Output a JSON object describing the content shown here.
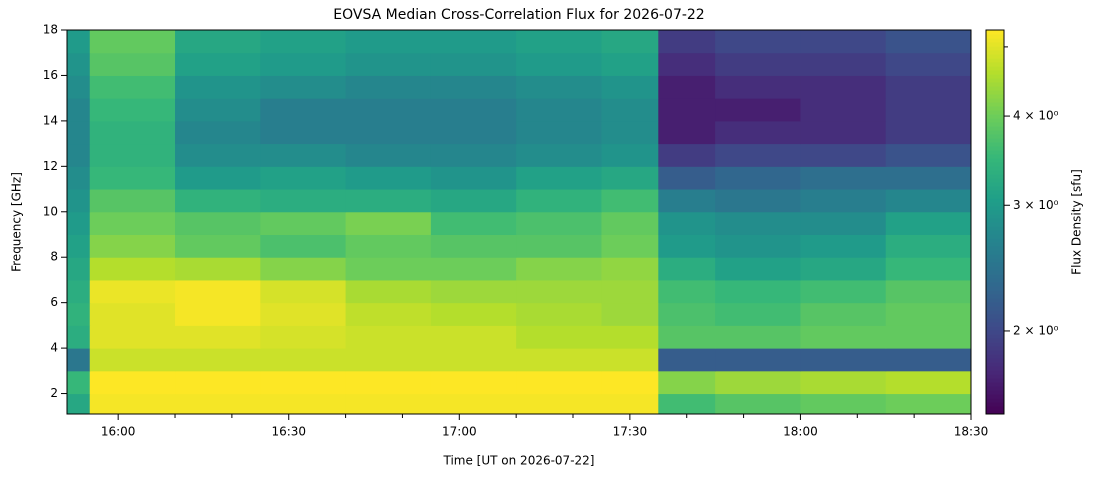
{
  "chart_data": {
    "type": "heatmap",
    "title": "EOVSA Median Cross-Correlation Flux for 2026-07-22",
    "x_label": "Time [UT on 2026-07-22]",
    "y_label": "Frequency [GHz]",
    "colorbar_label": "Flux Density [sfu]",
    "colormap": "viridis",
    "x_bins": [
      951,
      955,
      970,
      985,
      1000,
      1015,
      1030,
      1045,
      1055,
      1065,
      1080,
      1095,
      1110
    ],
    "y_bins": [
      1.1,
      2,
      3,
      4,
      5,
      6,
      7,
      8,
      9,
      10,
      11,
      12,
      13,
      14,
      15,
      16,
      17,
      18
    ],
    "z": [
      [
        3.2,
        5.2,
        5.2,
        5.2,
        5.2,
        5.2,
        5.2,
        5.2,
        3.6,
        3.8,
        3.9,
        4.0
      ],
      [
        3.5,
        5.3,
        5.3,
        5.3,
        5.3,
        5.3,
        5.3,
        5.3,
        4.2,
        4.4,
        4.5,
        4.6
      ],
      [
        2.5,
        4.8,
        4.8,
        4.8,
        4.8,
        4.8,
        4.8,
        4.8,
        2.2,
        2.2,
        2.2,
        2.2
      ],
      [
        3.3,
        5.0,
        5.0,
        4.9,
        4.8,
        4.8,
        4.6,
        4.6,
        3.8,
        3.8,
        3.9,
        3.9
      ],
      [
        3.4,
        5.0,
        5.2,
        5.0,
        4.7,
        4.6,
        4.5,
        4.4,
        3.7,
        3.6,
        3.8,
        3.9
      ],
      [
        3.3,
        5.1,
        5.2,
        4.9,
        4.5,
        4.4,
        4.4,
        4.4,
        3.6,
        3.5,
        3.6,
        3.8
      ],
      [
        3.2,
        4.6,
        4.5,
        4.2,
        4.0,
        4.0,
        4.2,
        4.3,
        3.3,
        3.1,
        3.2,
        3.5
      ],
      [
        3.1,
        4.2,
        3.9,
        3.7,
        3.9,
        3.8,
        3.8,
        4.0,
        3.0,
        2.9,
        3.0,
        3.3
      ],
      [
        3.0,
        4.0,
        3.8,
        3.9,
        4.1,
        3.6,
        3.7,
        3.9,
        2.9,
        2.8,
        2.8,
        3.1
      ],
      [
        2.9,
        3.8,
        3.4,
        3.3,
        3.3,
        3.2,
        3.4,
        3.6,
        2.6,
        2.5,
        2.6,
        2.7
      ],
      [
        2.8,
        3.5,
        3.0,
        3.1,
        3.0,
        2.9,
        3.1,
        3.2,
        2.2,
        2.3,
        2.4,
        2.4
      ],
      [
        2.7,
        3.4,
        2.8,
        2.8,
        2.7,
        2.7,
        2.8,
        2.9,
        1.9,
        2.0,
        2.0,
        2.1
      ],
      [
        2.7,
        3.4,
        2.7,
        2.6,
        2.6,
        2.6,
        2.7,
        2.8,
        1.7,
        1.8,
        1.8,
        1.9
      ],
      [
        2.7,
        3.5,
        2.8,
        2.6,
        2.6,
        2.6,
        2.7,
        2.8,
        1.7,
        1.7,
        1.8,
        1.9
      ],
      [
        2.8,
        3.6,
        2.9,
        2.8,
        2.7,
        2.7,
        2.8,
        2.9,
        1.7,
        1.8,
        1.8,
        1.9
      ],
      [
        2.9,
        3.8,
        3.1,
        3.0,
        2.9,
        2.9,
        3.0,
        3.1,
        1.8,
        1.9,
        1.9,
        2.0
      ],
      [
        3.0,
        3.9,
        3.2,
        3.1,
        3.0,
        3.0,
        3.1,
        3.2,
        1.9,
        2.0,
        2.0,
        2.1
      ]
    ],
    "xlim": [
      951,
      1110
    ],
    "xticks": [
      {
        "value": 960,
        "label": "16:00"
      },
      {
        "value": 990,
        "label": "16:30"
      },
      {
        "value": 1020,
        "label": "17:00"
      },
      {
        "value": 1050,
        "label": "17:30"
      },
      {
        "value": 1080,
        "label": "18:00"
      },
      {
        "value": 1110,
        "label": "18:30"
      }
    ],
    "xminorticks": [
      970,
      980,
      1000,
      1010,
      1030,
      1040,
      1060,
      1070,
      1090,
      1100
    ],
    "ylim": [
      1.1,
      18
    ],
    "yticks": [
      2,
      4,
      6,
      8,
      10,
      12,
      14,
      16,
      18
    ],
    "clim": [
      1.53,
      5.28
    ],
    "clog": true,
    "cticks": [
      {
        "value": 2,
        "label": "2 × 10⁰"
      },
      {
        "value": 3,
        "label": "3 × 10⁰"
      },
      {
        "value": 4,
        "label": "4 × 10⁰"
      }
    ],
    "cminorticks": [
      5
    ]
  }
}
